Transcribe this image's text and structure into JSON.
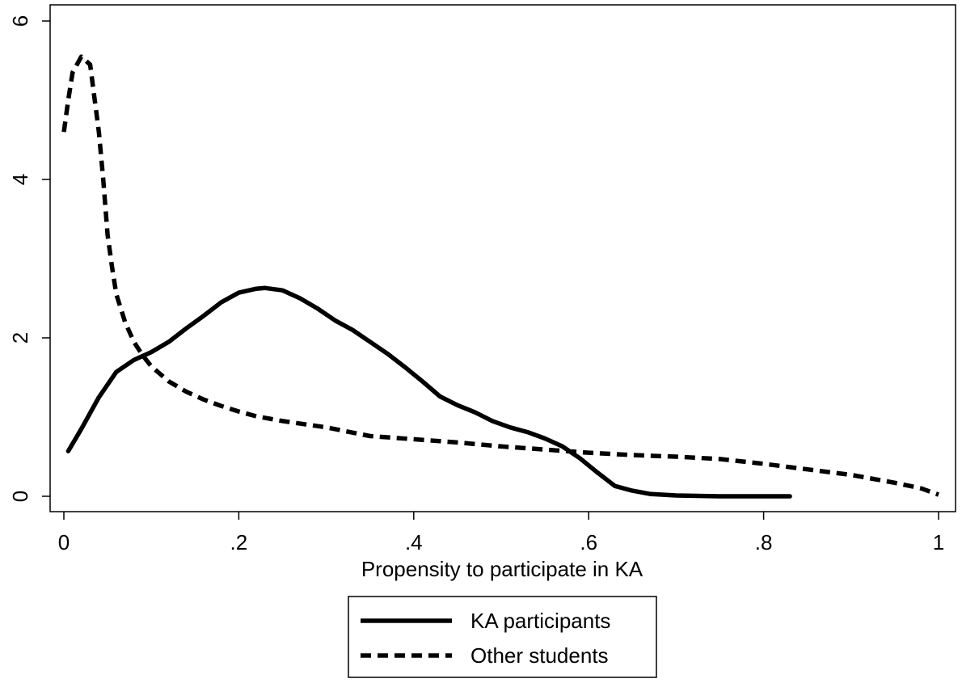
{
  "chart_data": {
    "type": "line",
    "title": "",
    "xlabel": "Propensity to participate in KA",
    "ylabel": "",
    "xlim": [
      0,
      1
    ],
    "ylim": [
      0,
      6
    ],
    "x_ticks": [
      0,
      0.2,
      0.4,
      0.6,
      0.8,
      1
    ],
    "x_tick_labels": [
      "0",
      ".2",
      ".4",
      ".6",
      ".8",
      "1"
    ],
    "y_ticks": [
      0,
      2,
      4,
      6
    ],
    "y_tick_labels": [
      "0",
      "2",
      "4",
      "6"
    ],
    "grid": false,
    "legend_position": "bottom",
    "series": [
      {
        "name": "KA participants",
        "style": "solid",
        "color": "#000000",
        "points": [
          [
            0.005,
            0.57
          ],
          [
            0.02,
            0.85
          ],
          [
            0.04,
            1.25
          ],
          [
            0.06,
            1.57
          ],
          [
            0.08,
            1.72
          ],
          [
            0.1,
            1.82
          ],
          [
            0.12,
            1.95
          ],
          [
            0.14,
            2.12
          ],
          [
            0.16,
            2.28
          ],
          [
            0.18,
            2.45
          ],
          [
            0.2,
            2.57
          ],
          [
            0.22,
            2.62
          ],
          [
            0.23,
            2.63
          ],
          [
            0.25,
            2.6
          ],
          [
            0.27,
            2.5
          ],
          [
            0.29,
            2.37
          ],
          [
            0.31,
            2.22
          ],
          [
            0.33,
            2.1
          ],
          [
            0.35,
            1.95
          ],
          [
            0.37,
            1.8
          ],
          [
            0.39,
            1.63
          ],
          [
            0.41,
            1.45
          ],
          [
            0.43,
            1.26
          ],
          [
            0.45,
            1.15
          ],
          [
            0.47,
            1.06
          ],
          [
            0.49,
            0.95
          ],
          [
            0.51,
            0.87
          ],
          [
            0.53,
            0.81
          ],
          [
            0.55,
            0.73
          ],
          [
            0.57,
            0.63
          ],
          [
            0.59,
            0.48
          ],
          [
            0.61,
            0.3
          ],
          [
            0.63,
            0.13
          ],
          [
            0.65,
            0.07
          ],
          [
            0.67,
            0.03
          ],
          [
            0.7,
            0.01
          ],
          [
            0.75,
            0.0
          ],
          [
            0.8,
            0.0
          ],
          [
            0.83,
            0.0
          ]
        ]
      },
      {
        "name": "Other students",
        "style": "dashed",
        "color": "#000000",
        "points": [
          [
            0.0,
            4.6
          ],
          [
            0.005,
            5.0
          ],
          [
            0.01,
            5.35
          ],
          [
            0.02,
            5.55
          ],
          [
            0.03,
            5.45
          ],
          [
            0.04,
            4.6
          ],
          [
            0.045,
            4.0
          ],
          [
            0.05,
            3.3
          ],
          [
            0.055,
            2.9
          ],
          [
            0.06,
            2.55
          ],
          [
            0.07,
            2.2
          ],
          [
            0.08,
            1.95
          ],
          [
            0.09,
            1.78
          ],
          [
            0.1,
            1.64
          ],
          [
            0.12,
            1.45
          ],
          [
            0.14,
            1.32
          ],
          [
            0.16,
            1.22
          ],
          [
            0.18,
            1.14
          ],
          [
            0.2,
            1.07
          ],
          [
            0.22,
            1.01
          ],
          [
            0.25,
            0.95
          ],
          [
            0.3,
            0.87
          ],
          [
            0.35,
            0.76
          ],
          [
            0.4,
            0.72
          ],
          [
            0.45,
            0.68
          ],
          [
            0.5,
            0.63
          ],
          [
            0.55,
            0.59
          ],
          [
            0.6,
            0.55
          ],
          [
            0.65,
            0.52
          ],
          [
            0.7,
            0.5
          ],
          [
            0.75,
            0.47
          ],
          [
            0.8,
            0.41
          ],
          [
            0.85,
            0.34
          ],
          [
            0.9,
            0.27
          ],
          [
            0.95,
            0.17
          ],
          [
            0.98,
            0.1
          ],
          [
            1.0,
            0.02
          ]
        ]
      }
    ],
    "legend": {
      "entries": [
        "KA participants",
        "Other students"
      ]
    }
  }
}
